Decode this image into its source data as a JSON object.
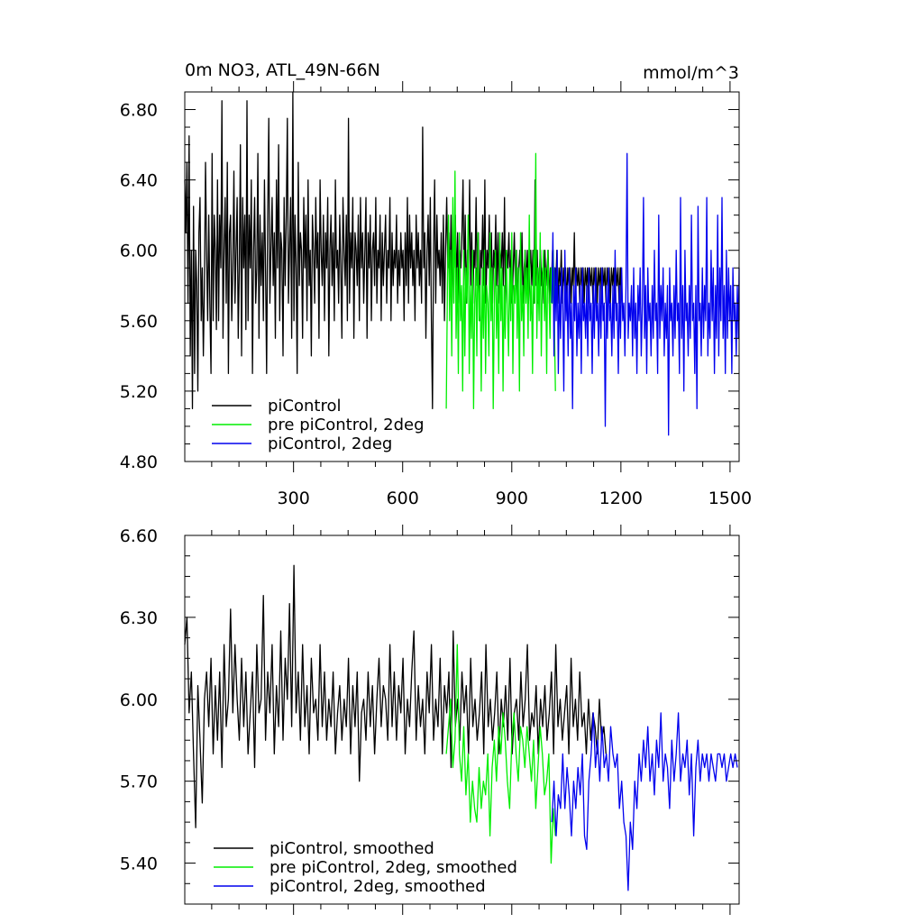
{
  "figure": {
    "title_left": "0m NO3, ATL_49N-66N",
    "title_right": "mmol/m^3"
  },
  "chart_data": [
    {
      "type": "line",
      "xlim": [
        1,
        1525
      ],
      "ylim": [
        4.8,
        6.9
      ],
      "x_ticks": [
        300,
        600,
        900,
        1200,
        1500
      ],
      "x_tick_labels": [
        "300",
        "600",
        "900",
        "1200",
        "1500"
      ],
      "y_ticks": [
        4.8,
        5.2,
        5.6,
        6.0,
        6.4,
        6.8
      ],
      "y_tick_labels": [
        "4.80",
        "5.20",
        "5.60",
        "6.00",
        "6.40",
        "6.80"
      ],
      "legend_position": "bottom-left",
      "series": [
        {
          "name": "piControl",
          "color": "#000000",
          "x_start": 1,
          "x_end": 1200,
          "step": 3,
          "values": [
            6.4,
            6.1,
            6.5,
            5.7,
            6.65,
            5.4,
            6.0,
            5.1,
            6.25,
            5.3,
            6.0,
            5.8,
            5.2,
            6.1,
            6.3,
            5.6,
            5.9,
            5.4,
            5.8,
            6.5,
            6.0,
            5.6,
            6.2,
            5.7,
            5.3,
            6.55,
            5.6,
            6.2,
            6.0,
            5.55,
            6.4,
            5.6,
            6.2,
            5.9,
            6.85,
            5.5,
            6.0,
            6.3,
            5.7,
            6.5,
            5.3,
            6.1,
            6.2,
            5.6,
            5.9,
            6.45,
            5.7,
            6.0,
            6.3,
            5.5,
            5.9,
            6.6,
            5.4,
            6.3,
            5.9,
            6.2,
            5.55,
            6.85,
            5.6,
            6.2,
            5.9,
            6.4,
            5.3,
            6.0,
            6.3,
            5.7,
            5.9,
            6.55,
            5.5,
            6.2,
            5.8,
            6.1,
            5.6,
            6.4,
            5.9,
            5.3,
            6.2,
            6.75,
            5.7,
            6.0,
            6.3,
            5.8,
            6.1,
            5.5,
            6.4,
            5.9,
            6.6,
            5.6,
            6.1,
            6.0,
            5.4,
            6.3,
            5.8,
            6.2,
            6.75,
            5.7,
            6.0,
            6.3,
            5.5,
            6.9,
            5.6,
            6.2,
            5.9,
            5.3,
            6.5,
            5.8,
            6.1,
            6.0,
            5.5,
            6.3,
            5.9,
            6.2,
            5.6,
            6.4,
            5.8,
            6.0,
            5.4,
            6.2,
            6.0,
            5.7,
            6.3,
            5.9,
            6.1,
            5.5,
            6.4,
            6.0,
            5.8,
            6.2,
            5.6,
            6.1,
            5.9,
            6.3,
            5.4,
            6.0,
            6.2,
            5.8,
            6.1,
            5.6,
            6.4,
            5.9,
            6.0,
            5.7,
            6.2,
            5.9,
            5.5,
            6.3,
            6.0,
            5.8,
            6.2,
            5.6,
            6.75,
            5.7,
            6.1,
            5.9,
            6.3,
            5.5,
            6.1,
            6.0,
            5.8,
            6.2,
            5.6,
            6.3,
            5.9,
            6.1,
            5.7,
            6.0,
            6.3,
            5.5,
            6.1,
            5.9,
            6.2,
            5.6,
            6.0,
            6.1,
            5.8,
            6.3,
            5.7,
            6.0,
            5.9,
            6.2,
            5.6,
            6.1,
            5.8,
            6.0,
            6.2,
            5.7,
            6.0,
            5.9,
            6.3,
            5.6,
            6.1,
            5.8,
            6.0,
            5.9,
            6.2,
            5.7,
            6.0,
            5.8,
            6.1,
            5.9,
            6.0,
            5.6,
            6.1,
            5.8,
            6.3,
            5.7,
            6.2,
            5.9,
            6.1,
            5.8,
            6.0,
            5.6,
            6.2,
            5.9,
            6.1,
            5.8,
            6.0,
            5.7,
            6.7,
            5.9,
            6.1,
            5.5,
            6.0,
            6.2,
            5.8,
            6.3,
            5.6,
            5.1,
            6.0,
            6.4,
            5.7,
            6.2,
            5.9,
            6.0,
            5.8,
            6.1,
            5.7,
            6.2,
            5.6,
            6.0,
            6.3,
            5.9,
            6.1,
            5.8,
            6.2,
            5.7,
            6.0,
            5.9,
            6.2,
            5.8,
            6.1,
            5.7,
            6.0,
            5.9,
            6.1,
            6.4,
            5.8,
            6.2,
            5.7,
            6.0,
            5.9,
            6.4,
            5.8,
            6.1,
            5.7,
            6.0,
            5.9,
            6.3,
            5.8,
            6.1,
            5.6,
            6.0,
            5.9,
            6.2,
            5.8,
            6.4,
            5.7,
            6.0,
            5.9,
            6.2,
            5.8,
            6.1,
            5.7,
            6.0,
            5.9,
            6.2,
            5.8,
            6.1,
            5.7,
            6.0,
            5.9,
            6.1,
            5.8,
            6.3,
            5.7,
            6.0,
            5.9,
            6.1,
            5.8,
            6.0,
            5.7,
            5.9,
            6.1,
            5.8,
            6.0,
            5.7,
            5.9,
            6.0,
            5.8,
            6.1,
            5.7,
            5.9,
            6.0,
            5.8,
            6.0,
            5.7,
            5.9,
            6.0,
            5.8,
            6.0,
            5.7,
            6.4,
            5.8,
            6.0,
            5.7,
            5.9,
            6.0,
            5.8,
            5.9,
            5.7,
            6.0,
            5.8,
            5.9,
            6.0,
            5.7,
            5.9,
            5.8,
            6.0,
            5.7,
            5.9,
            5.8,
            6.0,
            5.7,
            5.9,
            5.8,
            6.0,
            5.7,
            5.9,
            5.8,
            5.9,
            5.7,
            5.9,
            5.8,
            5.9,
            5.7,
            5.9,
            5.8,
            6.1,
            5.7,
            5.9,
            5.8,
            5.9,
            5.7,
            5.9,
            5.8,
            5.9,
            5.7,
            5.9,
            5.8,
            5.9,
            5.7,
            5.9,
            5.8,
            5.9,
            5.7,
            5.9,
            5.8,
            5.9,
            5.7,
            5.9,
            5.8,
            5.9,
            5.7,
            5.9,
            5.8,
            5.9,
            5.7,
            5.9,
            5.8,
            5.9,
            5.7,
            5.9,
            5.8,
            5.9,
            5.7,
            5.9,
            5.8,
            5.9,
            5.7,
            5.9,
            5.8,
            5.9,
            5.7,
            5.8,
            5.9,
            5.7,
            5.8
          ]
        },
        {
          "name": "pre piControl, 2deg",
          "color": "#00ee00",
          "x_start": 720,
          "x_end": 1020,
          "step": 3,
          "values": [
            5.1,
            5.8,
            6.2,
            5.6,
            6.0,
            5.4,
            6.3,
            5.7,
            6.45,
            5.5,
            5.9,
            5.3,
            6.1,
            5.6,
            5.8,
            5.2,
            6.0,
            5.4,
            5.9,
            5.7,
            6.2,
            5.3,
            5.8,
            5.5,
            6.0,
            5.1,
            5.7,
            5.9,
            5.4,
            6.1,
            5.6,
            5.8,
            5.2,
            5.9,
            5.5,
            6.0,
            5.3,
            5.8,
            5.7,
            5.4,
            6.1,
            5.6,
            5.9,
            5.1,
            5.7,
            6.0,
            5.5,
            5.8,
            5.3,
            6.1,
            5.6,
            5.9,
            5.2,
            5.8,
            5.5,
            6.0,
            5.7,
            5.4,
            5.9,
            5.6,
            6.1,
            5.3,
            5.8,
            5.7,
            6.0,
            5.5,
            5.9,
            5.2,
            6.1,
            5.6,
            5.8,
            5.4,
            6.0,
            5.7,
            5.9,
            5.5,
            6.2,
            5.6,
            5.8,
            5.3,
            6.0,
            5.7,
            6.55,
            5.5,
            5.9,
            5.6,
            6.1,
            5.4,
            5.8,
            6.0,
            5.6,
            5.9,
            5.3,
            6.0,
            5.8,
            5.5,
            5.9,
            5.7,
            6.0,
            5.6,
            5.2
          ]
        },
        {
          "name": "piControl, 2deg",
          "color": "#0000ee",
          "x_start": 1010,
          "x_end": 1525,
          "step": 3,
          "values": [
            5.7,
            6.1,
            5.4,
            5.9,
            5.6,
            6.0,
            5.3,
            5.8,
            5.5,
            5.9,
            5.7,
            5.2,
            6.0,
            5.6,
            5.8,
            5.4,
            5.9,
            5.5,
            5.7,
            5.1,
            5.8,
            5.6,
            5.9,
            5.4,
            5.7,
            5.5,
            5.8,
            5.3,
            5.9,
            5.6,
            5.7,
            5.5,
            5.8,
            5.4,
            5.9,
            5.6,
            5.7,
            5.3,
            5.8,
            5.5,
            5.9,
            5.6,
            5.7,
            5.4,
            5.8,
            5.5,
            5.9,
            5.6,
            5.7,
            5.0,
            5.8,
            5.5,
            5.9,
            5.6,
            5.7,
            5.4,
            5.8,
            5.5,
            6.0,
            5.6,
            5.7,
            5.3,
            5.8,
            5.5,
            5.9,
            5.6,
            5.7,
            5.4,
            5.8,
            6.55,
            5.5,
            5.7,
            5.6,
            5.8,
            5.4,
            5.9,
            5.5,
            5.7,
            5.3,
            5.8,
            5.6,
            5.9,
            5.4,
            5.7,
            6.3,
            5.5,
            5.8,
            5.3,
            5.9,
            5.6,
            5.7,
            5.4,
            5.8,
            5.5,
            6.0,
            5.6,
            5.7,
            5.3,
            6.2,
            5.5,
            5.8,
            5.6,
            5.9,
            5.4,
            5.7,
            5.5,
            5.8,
            4.95,
            5.9,
            5.6,
            5.7,
            5.4,
            5.8,
            5.5,
            6.0,
            5.6,
            5.7,
            5.3,
            6.3,
            5.5,
            5.8,
            5.2,
            6.0,
            5.6,
            5.7,
            5.4,
            5.8,
            5.5,
            6.2,
            5.6,
            5.7,
            5.3,
            5.8,
            5.1,
            6.25,
            5.6,
            5.7,
            5.4,
            5.9,
            5.5,
            5.8,
            5.6,
            6.3,
            5.4,
            5.7,
            5.5,
            6.0,
            5.6,
            5.9,
            5.3,
            5.8,
            5.5,
            6.2,
            5.4,
            5.9,
            5.6,
            6.3,
            5.5,
            5.8,
            5.3,
            6.0,
            5.5,
            5.9,
            5.6,
            5.8,
            5.3,
            5.9,
            5.6,
            5.7,
            5.4,
            5.8,
            5.5,
            5.9,
            5.6
          ]
        }
      ]
    },
    {
      "type": "line",
      "xlim": [
        1,
        1525
      ],
      "ylim": [
        5.25,
        6.6
      ],
      "x_ticks": [
        300,
        600,
        900,
        1200,
        1500
      ],
      "x_tick_labels": [],
      "y_ticks": [
        5.4,
        5.7,
        6.0,
        6.3,
        6.6
      ],
      "y_tick_labels": [
        "5.40",
        "5.70",
        "6.00",
        "6.30",
        "6.60"
      ],
      "legend_position": "bottom-left",
      "series": [
        {
          "name": "piControl, smoothed",
          "color": "#000000",
          "x_start": 1,
          "x_end": 1200,
          "step": 6,
          "values": [
            6.2,
            6.3,
            5.95,
            6.1,
            5.8,
            5.53,
            6.05,
            5.85,
            5.62,
            6.0,
            6.1,
            5.9,
            6.15,
            5.8,
            6.05,
            5.85,
            6.1,
            5.75,
            6.2,
            5.9,
            6.0,
            6.33,
            5.95,
            6.2,
            6.0,
            5.85,
            6.15,
            5.9,
            6.1,
            5.8,
            5.95,
            6.1,
            5.75,
            6.2,
            5.95,
            6.0,
            6.38,
            5.85,
            6.1,
            5.95,
            6.2,
            5.8,
            6.05,
            5.9,
            6.25,
            5.85,
            6.15,
            6.0,
            6.35,
            5.9,
            6.49,
            5.95,
            6.1,
            5.85,
            6.2,
            5.9,
            6.05,
            5.8,
            6.15,
            5.95,
            6.0,
            5.85,
            6.2,
            5.9,
            6.1,
            5.85,
            6.0,
            5.9,
            6.1,
            5.8,
            5.95,
            6.05,
            5.85,
            6.0,
            5.9,
            6.15,
            5.8,
            6.05,
            5.9,
            6.1,
            5.7,
            5.95,
            6.0,
            5.85,
            6.1,
            5.9,
            6.05,
            5.8,
            6.0,
            6.15,
            5.9,
            6.05,
            6.0,
            5.85,
            6.2,
            5.9,
            6.1,
            5.85,
            6.05,
            5.95,
            6.15,
            5.8,
            6.0,
            5.9,
            6.1,
            6.25,
            5.85,
            6.05,
            5.9,
            6.0,
            5.8,
            6.1,
            5.95,
            6.2,
            5.85,
            6.0,
            5.9,
            6.15,
            5.8,
            6.05,
            5.95,
            6.1,
            5.75,
            6.25,
            5.9,
            6.0,
            5.85,
            6.1,
            5.95,
            6.05,
            5.8,
            6.15,
            5.9,
            6.0,
            5.85,
            5.95,
            6.1,
            5.8,
            6.2,
            5.9,
            6.0,
            5.85,
            5.95,
            6.1,
            5.8,
            6.0,
            5.9,
            6.05,
            5.85,
            6.15,
            5.8,
            5.95,
            6.0,
            5.85,
            6.1,
            5.9,
            6.0,
            6.2,
            5.85,
            5.95,
            5.9,
            6.05,
            5.8,
            6.0,
            5.9,
            6.05,
            5.85,
            5.95,
            6.1,
            5.8,
            6.2,
            5.9,
            6.0,
            5.85,
            5.95,
            6.05,
            5.8,
            6.15,
            5.9,
            6.0,
            5.85,
            6.1,
            5.9,
            5.95,
            5.8,
            6.0,
            5.85,
            5.95,
            5.9,
            5.8,
            6.0,
            5.85,
            5.9,
            5.8
          ]
        },
        {
          "name": "pre piControl, 2deg, smoothed",
          "color": "#00ee00",
          "x_start": 720,
          "x_end": 1020,
          "step": 6,
          "values": [
            5.8,
            5.9,
            6.0,
            5.75,
            5.85,
            6.2,
            5.8,
            5.7,
            5.9,
            5.65,
            5.8,
            5.55,
            5.7,
            5.6,
            5.55,
            5.75,
            5.6,
            5.7,
            5.65,
            5.8,
            5.5,
            5.75,
            5.85,
            5.7,
            5.9,
            5.8,
            5.95,
            5.85,
            5.7,
            5.6,
            5.85,
            5.95,
            5.8,
            5.7,
            5.9,
            5.85,
            5.75,
            5.9,
            5.8,
            5.7,
            5.85,
            5.6,
            5.75,
            5.9,
            5.8,
            5.65,
            5.7,
            5.8,
            5.4,
            5.6,
            5.5
          ]
        },
        {
          "name": "piControl, 2deg, smoothed",
          "color": "#0000ee",
          "x_start": 1010,
          "x_end": 1525,
          "step": 6,
          "values": [
            5.55,
            5.7,
            5.5,
            5.65,
            5.6,
            5.8,
            5.6,
            5.75,
            5.65,
            5.5,
            5.7,
            5.6,
            5.75,
            5.65,
            5.8,
            5.5,
            5.45,
            5.7,
            5.8,
            5.95,
            5.75,
            5.85,
            5.7,
            5.9,
            5.75,
            5.8,
            5.7,
            5.9,
            5.8,
            5.75,
            5.8,
            5.6,
            5.7,
            5.55,
            5.5,
            5.3,
            5.55,
            5.45,
            5.7,
            5.6,
            5.8,
            5.7,
            5.85,
            5.75,
            5.9,
            5.7,
            5.8,
            5.65,
            5.85,
            5.75,
            5.95,
            5.7,
            5.8,
            5.75,
            5.6,
            5.85,
            5.7,
            5.8,
            5.95,
            5.7,
            5.8,
            5.75,
            5.85,
            5.65,
            5.8,
            5.5,
            5.75,
            5.85,
            5.7,
            5.8,
            5.75,
            5.8,
            5.7,
            5.8,
            5.75,
            5.7,
            5.8,
            5.8,
            5.75,
            5.8,
            5.7,
            5.75,
            5.8,
            5.75,
            5.8,
            5.75
          ]
        }
      ]
    }
  ]
}
